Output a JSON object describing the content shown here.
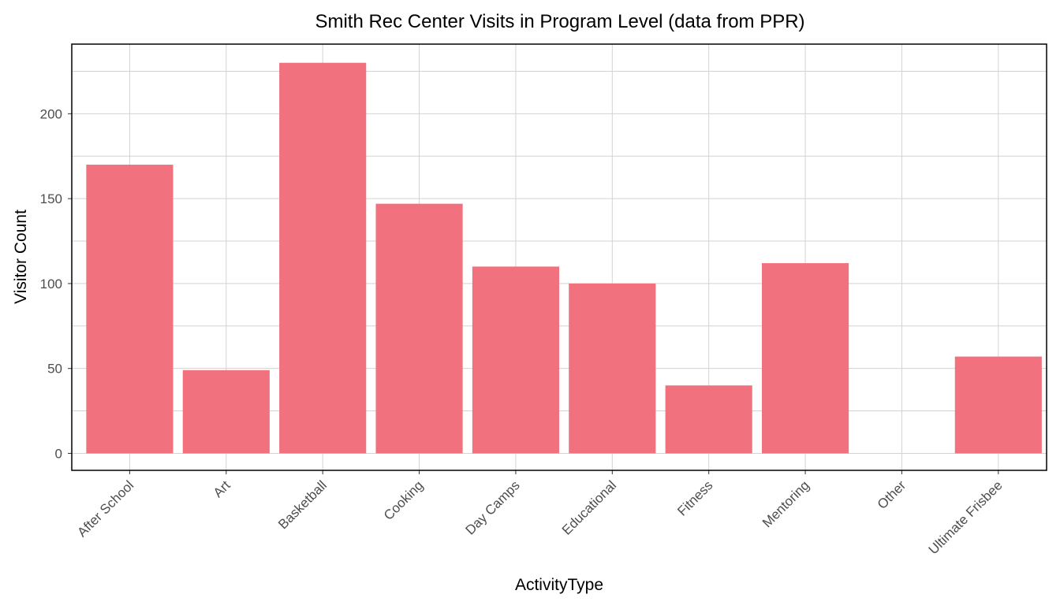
{
  "chart_data": {
    "type": "bar",
    "title": "Smith Rec Center Visits in Program Level (data from PPR)",
    "xlabel": "ActivityType",
    "ylabel": "Visitor Count",
    "categories": [
      "After School",
      "Art",
      "Basketball",
      "Cooking",
      "Day Camps",
      "Educational",
      "Fitness",
      "Mentoring",
      "Other",
      "Ultimate Frisbee"
    ],
    "values": [
      170,
      49,
      230,
      147,
      110,
      100,
      40,
      112,
      0,
      57
    ],
    "ylim": [
      -10,
      241
    ],
    "yticks": [
      "0",
      "50",
      "100",
      "150",
      "200"
    ],
    "grid": true,
    "legend": "none",
    "bar_color": "#f1717e"
  }
}
